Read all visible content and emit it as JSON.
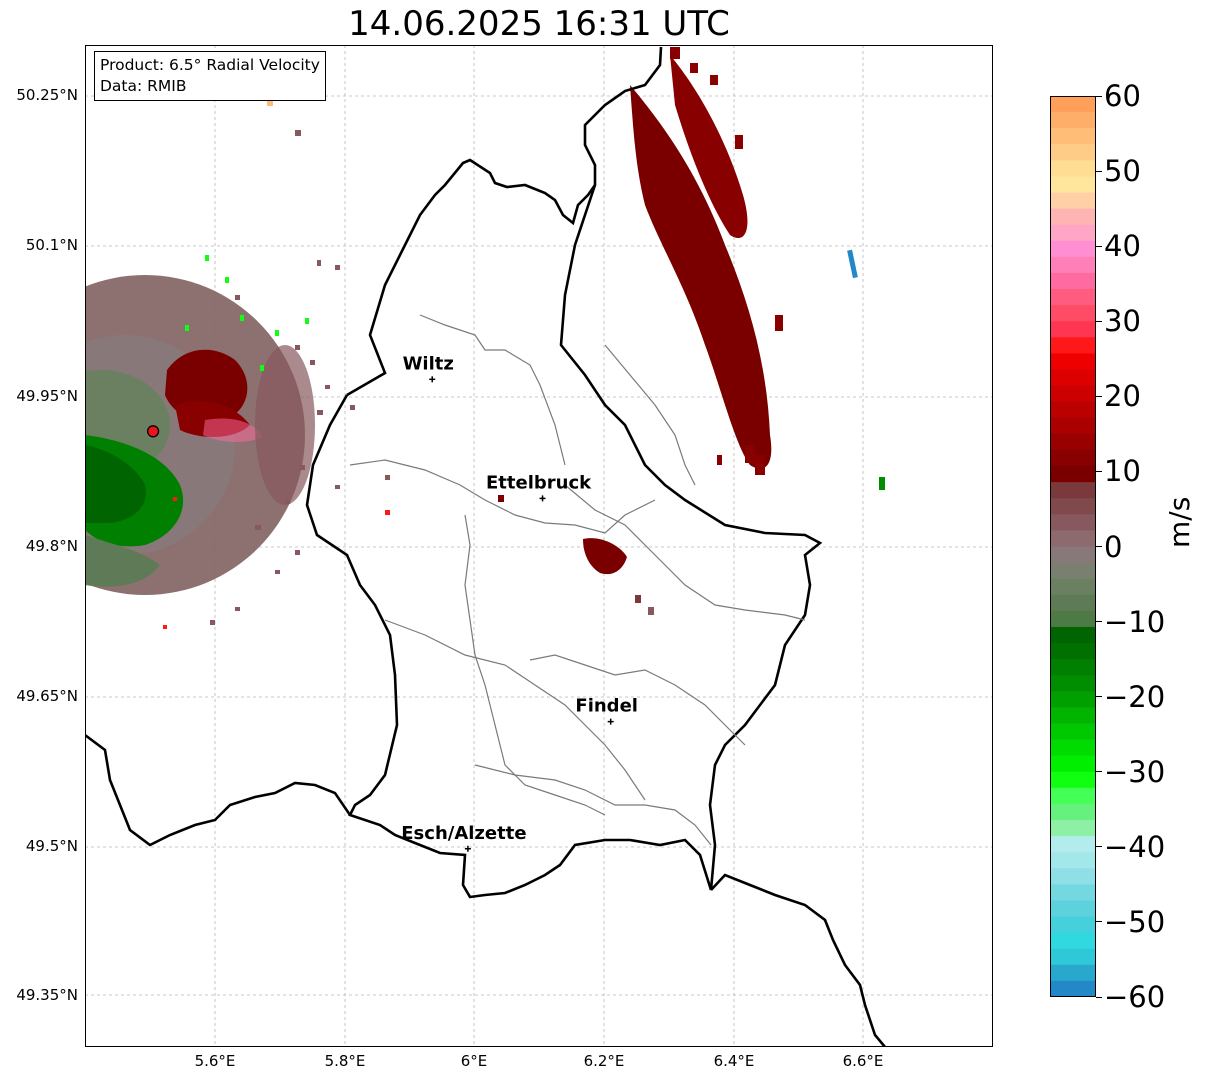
{
  "title": "14.06.2025 16:31 UTC",
  "info": {
    "product": "Product: 6.5° Radial Velocity",
    "source": "Data: RMIB"
  },
  "lat_labels": [
    "50.25°N",
    "50.1°N",
    "49.95°N",
    "49.8°N",
    "49.65°N",
    "49.5°N",
    "49.35°N"
  ],
  "lon_labels": [
    "5.6°E",
    "5.8°E",
    "6°E",
    "6.2°E",
    "6.4°E",
    "6.6°E"
  ],
  "cities": [
    {
      "name": "Wiltz",
      "lon": 5.935,
      "lat": 49.967
    },
    {
      "name": "Ettelbruck",
      "lon": 6.105,
      "lat": 49.848
    },
    {
      "name": "Findel",
      "lon": 6.21,
      "lat": 49.625
    },
    {
      "name": "Esch/Alzette",
      "lon": 5.99,
      "lat": 49.498
    }
  ],
  "radar_site": {
    "lon": 5.505,
    "lat": 49.915,
    "color": "#e8141e"
  },
  "colorbar": {
    "unit": "m/s",
    "min": -60,
    "max": 60,
    "ticks": [
      "60",
      "50",
      "40",
      "30",
      "20",
      "10",
      "0",
      "−10",
      "−20",
      "−30",
      "−40",
      "−50",
      "−60"
    ],
    "colors": [
      "#ff9f5a",
      "#ffae6a",
      "#ffbd77",
      "#ffcc88",
      "#ffde94",
      "#ffe69c",
      "#ffd0a6",
      "#ffb4b4",
      "#ffa6c6",
      "#ff8fd2",
      "#ff7fb8",
      "#ff6aa0",
      "#ff5c80",
      "#ff4c66",
      "#ff3652",
      "#ff1818",
      "#ee0000",
      "#dd0000",
      "#cc0000",
      "#bb0000",
      "#aa0000",
      "#990000",
      "#880000",
      "#7a0000",
      "#7a3a3c",
      "#80494c",
      "#87585e",
      "#8c6a6e",
      "#88787a",
      "#7a8070",
      "#6a8060",
      "#5e7a56",
      "#4e7a46",
      "#006400",
      "#007000",
      "#007f00",
      "#008e00",
      "#00a000",
      "#00b400",
      "#00c800",
      "#00dc00",
      "#00ee00",
      "#10ff10",
      "#44ff55",
      "#66f07e",
      "#8ef0a4",
      "#b2ecec",
      "#a2e8ea",
      "#8ee0e6",
      "#74d8e0",
      "#5ed2dc",
      "#45d0dc",
      "#30d8e0",
      "#2ec8d8",
      "#28a8cc",
      "#2388c8"
    ],
    "series_colors": {
      "inbound_strong": "#006400",
      "outbound_strong": "#7a0000",
      "near_zero": "#876868"
    }
  }
}
